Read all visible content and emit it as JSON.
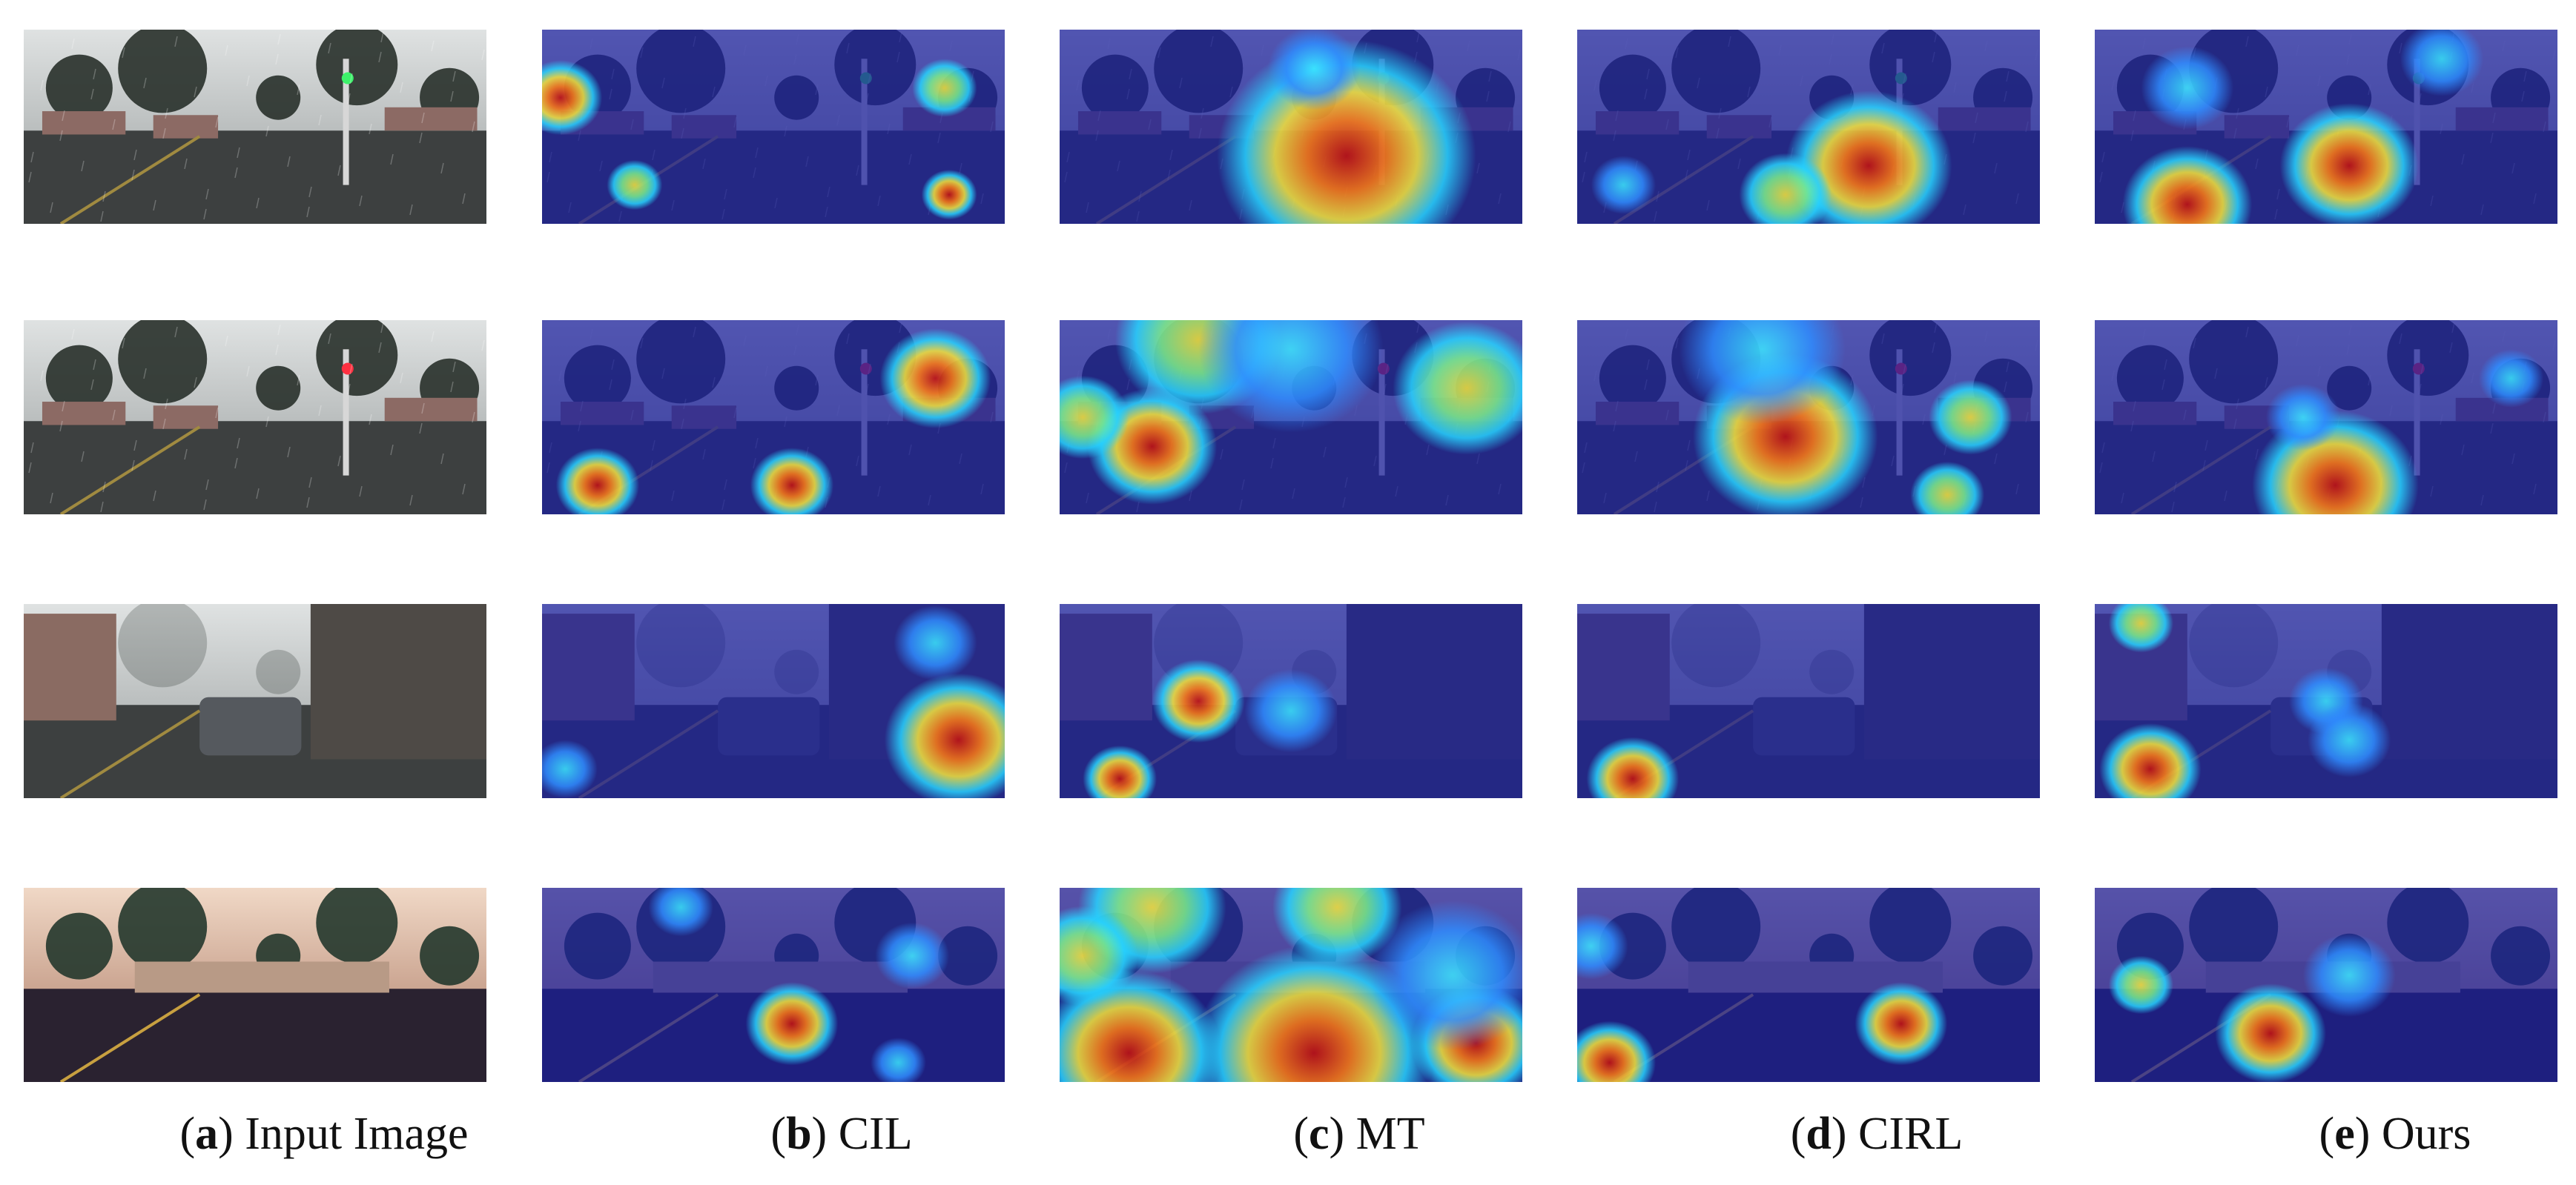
{
  "columns": [
    {
      "letter": "a",
      "label": "Input Image"
    },
    {
      "letter": "b",
      "label": "CIL"
    },
    {
      "letter": "c",
      "label": "MT"
    },
    {
      "letter": "d",
      "label": "CIRL"
    },
    {
      "letter": "e",
      "label": "Ours"
    }
  ],
  "rows": [
    {
      "scene": "rainy-day-road-green-light"
    },
    {
      "scene": "rainy-day-road-red-light"
    },
    {
      "scene": "rainy-street-car-ahead"
    },
    {
      "scene": "dusk-road-wall"
    }
  ],
  "colors": {
    "heat_low": "#1a1f9e",
    "heat_mid": "#28d7ff",
    "heat_high": "#d41c10"
  }
}
